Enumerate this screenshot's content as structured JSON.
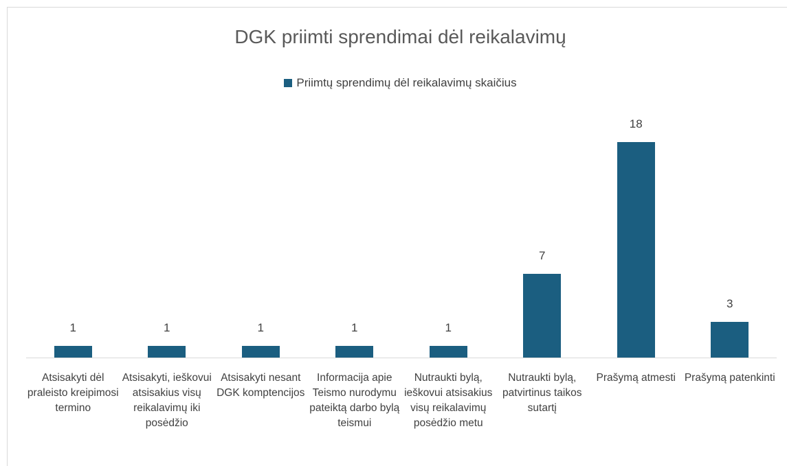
{
  "chart_data": {
    "type": "bar",
    "title": "DGK priimti sprendimai dėl reikalavimų",
    "categories": [
      "Atsisakyti dėl praleisto kreipimosi termino",
      "Atsisakyti, ieškovui atsisakius visų reikalavimų iki posėdžio",
      "Atsisakyti nesant DGK komptencijos",
      "Informacija apie Teismo nurodymu pateiktą darbo bylą teismui",
      "Nutraukti bylą, ieškovui atsisakius visų reikalavimų posėdžio metu",
      "Nutraukti bylą, patvirtinus taikos sutartį",
      "Prašymą atmesti",
      "Prašymą patenkinti"
    ],
    "series": [
      {
        "name": "Priimtų sprendimų dėl reikalavimų skaičius",
        "color": "#1b5e80",
        "values": [
          1,
          1,
          1,
          1,
          1,
          7,
          18,
          3
        ]
      }
    ]
  }
}
